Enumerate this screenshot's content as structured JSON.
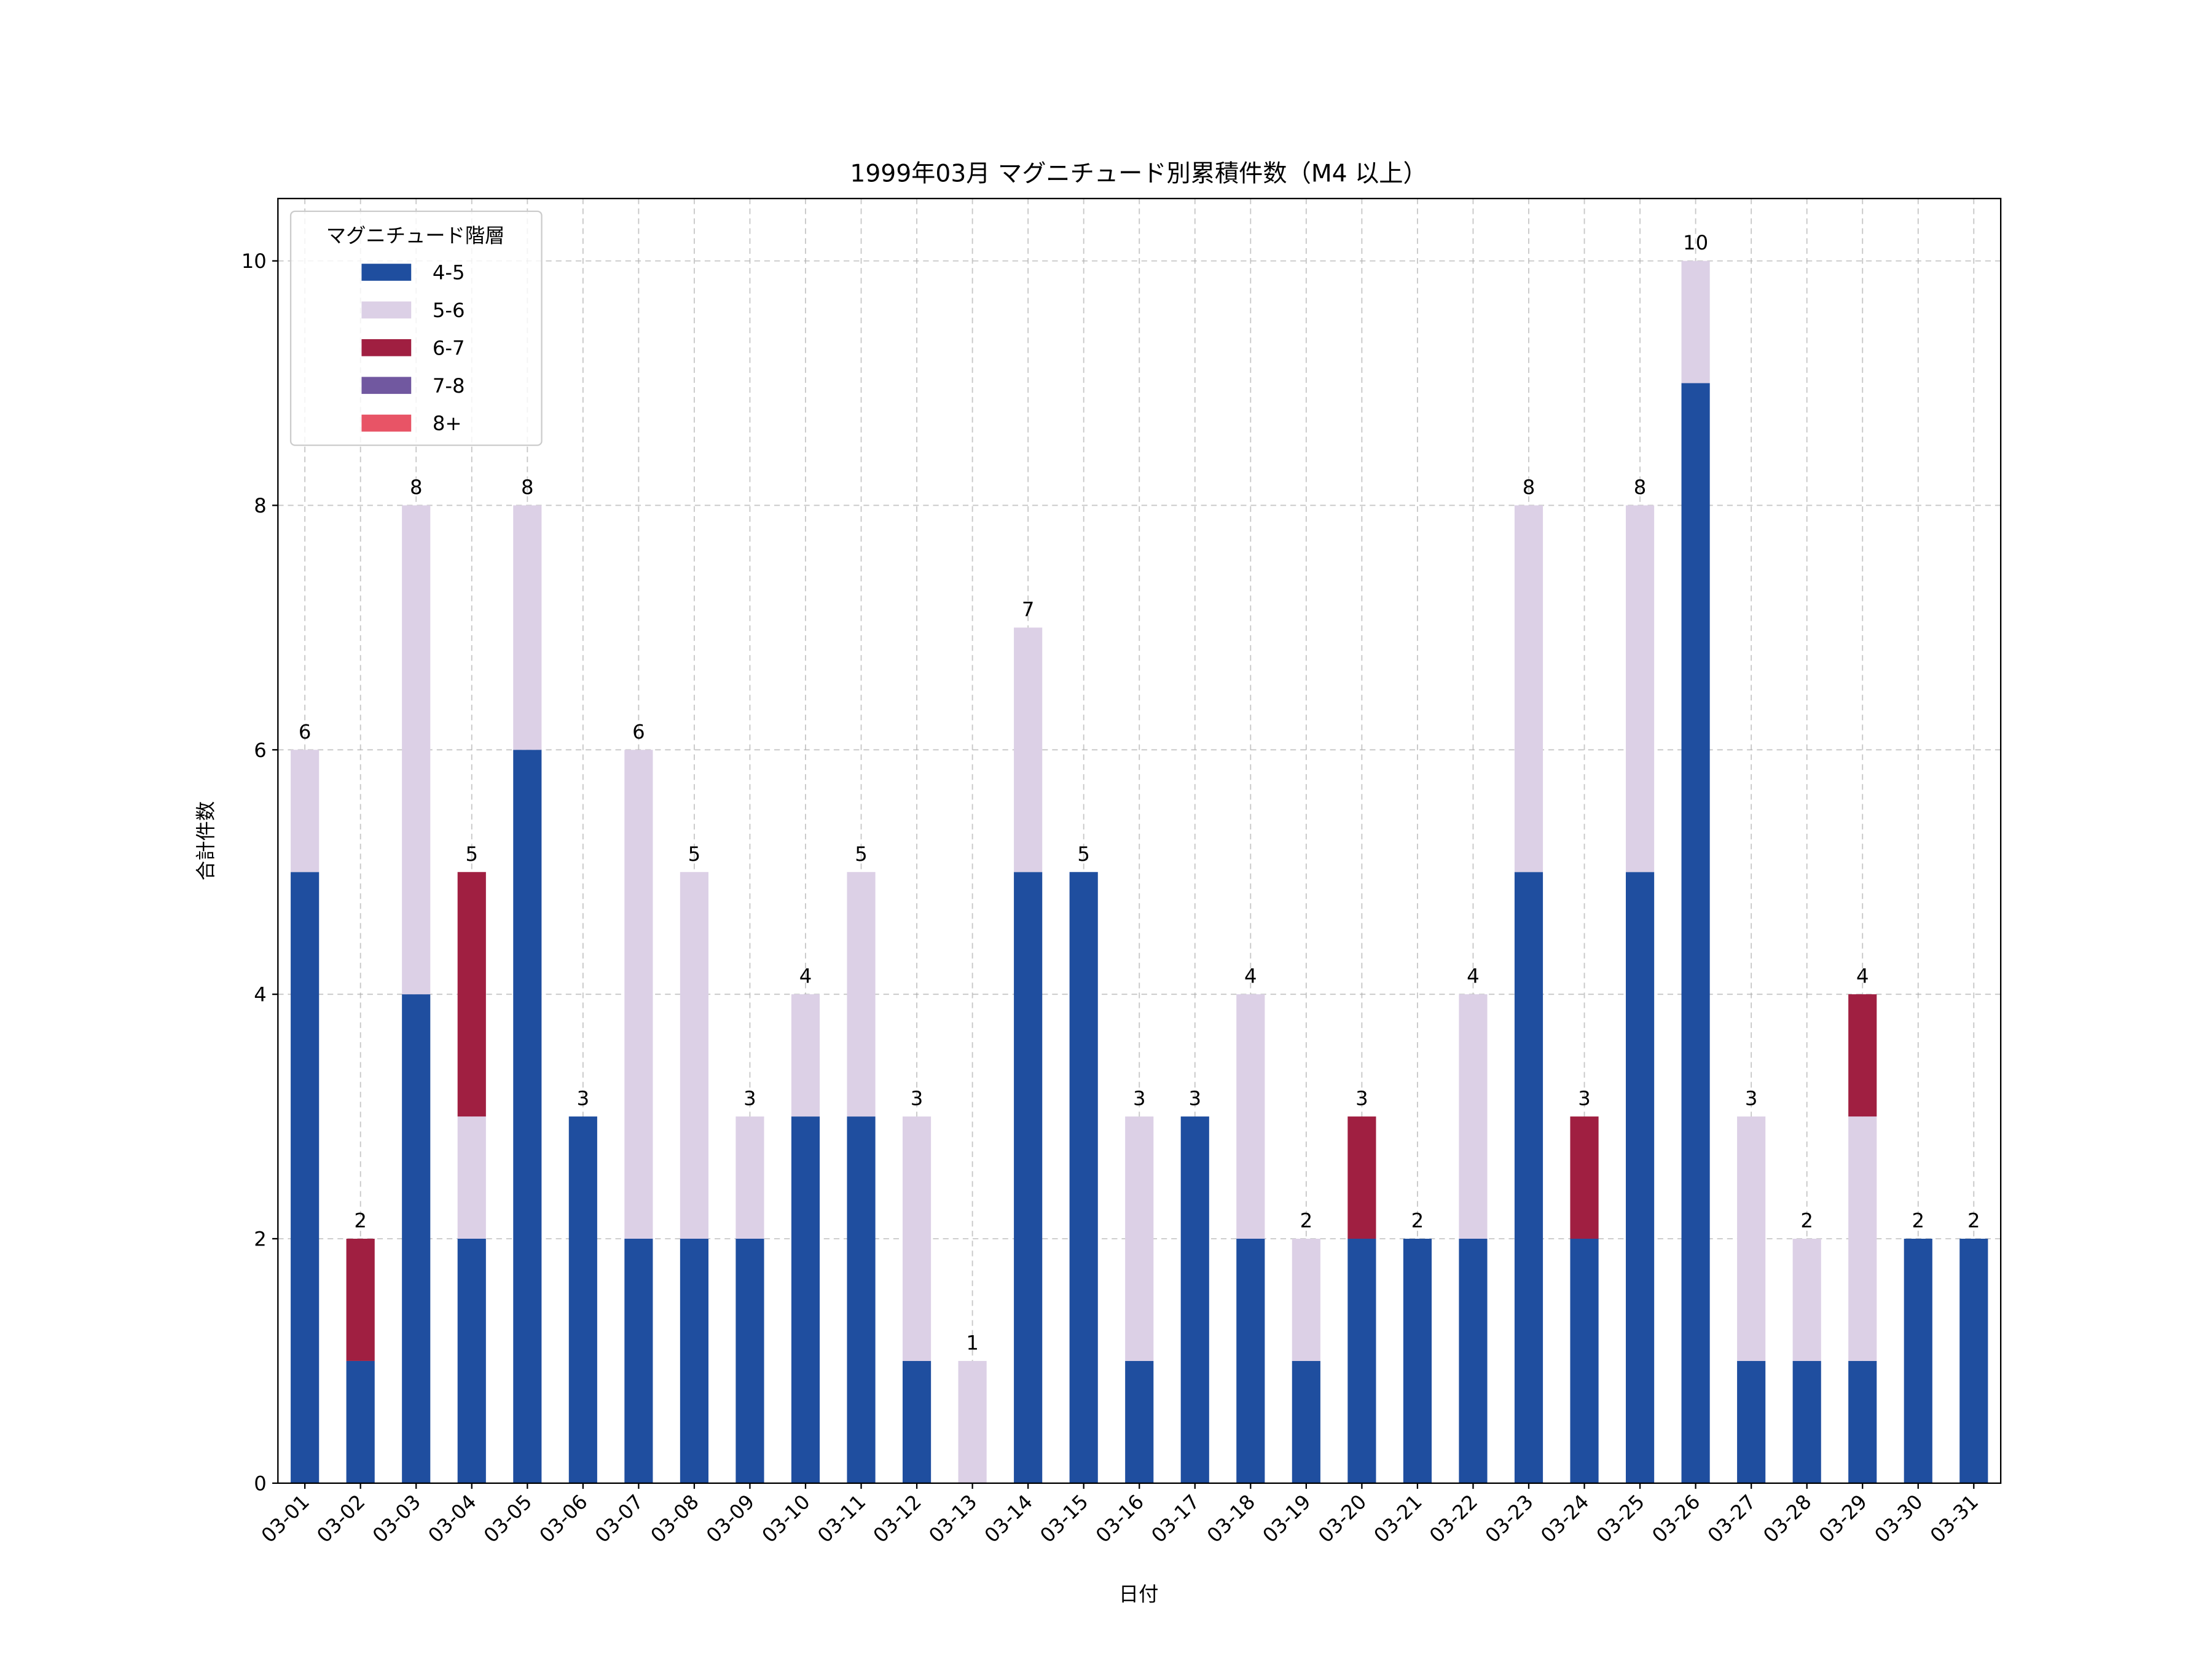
{
  "chart_data": {
    "type": "bar",
    "stacked": true,
    "title": "1999年03月 マグニチュード別累積件数（M4 以上）",
    "xlabel": "日付",
    "ylabel": "合計件数",
    "ylim": [
      0,
      10.5
    ],
    "yticks": [
      0,
      2,
      4,
      6,
      8,
      10
    ],
    "grid": true,
    "legend": {
      "title": "マグニチュード階層",
      "placement": "top-left"
    },
    "categories": [
      "03-01",
      "03-02",
      "03-03",
      "03-04",
      "03-05",
      "03-06",
      "03-07",
      "03-08",
      "03-09",
      "03-10",
      "03-11",
      "03-12",
      "03-13",
      "03-14",
      "03-15",
      "03-16",
      "03-17",
      "03-18",
      "03-19",
      "03-20",
      "03-21",
      "03-22",
      "03-23",
      "03-24",
      "03-25",
      "03-26",
      "03-27",
      "03-28",
      "03-29",
      "03-30",
      "03-31"
    ],
    "series": [
      {
        "name": "4-5",
        "color": "#1f4e9f",
        "values": [
          5,
          1,
          4,
          2,
          6,
          3,
          2,
          2,
          2,
          3,
          3,
          1,
          0,
          5,
          5,
          1,
          3,
          2,
          1,
          2,
          2,
          2,
          5,
          2,
          5,
          9,
          1,
          1,
          1,
          2,
          2
        ]
      },
      {
        "name": "5-6",
        "color": "#dcd0e6",
        "values": [
          1,
          0,
          4,
          1,
          2,
          0,
          4,
          3,
          1,
          1,
          2,
          2,
          1,
          2,
          0,
          2,
          0,
          2,
          1,
          0,
          0,
          2,
          3,
          0,
          3,
          1,
          2,
          1,
          2,
          0,
          0
        ]
      },
      {
        "name": "6-7",
        "color": "#a01f41",
        "values": [
          0,
          1,
          0,
          2,
          0,
          0,
          0,
          0,
          0,
          0,
          0,
          0,
          0,
          0,
          0,
          0,
          0,
          0,
          0,
          1,
          0,
          0,
          0,
          1,
          0,
          0,
          0,
          0,
          1,
          0,
          0
        ]
      },
      {
        "name": "7-8",
        "color": "#7158a0",
        "values": [
          0,
          0,
          0,
          0,
          0,
          0,
          0,
          0,
          0,
          0,
          0,
          0,
          0,
          0,
          0,
          0,
          0,
          0,
          0,
          0,
          0,
          0,
          0,
          0,
          0,
          0,
          0,
          0,
          0,
          0,
          0
        ]
      },
      {
        "name": "8+",
        "color": "#e85466",
        "values": [
          0,
          0,
          0,
          0,
          0,
          0,
          0,
          0,
          0,
          0,
          0,
          0,
          0,
          0,
          0,
          0,
          0,
          0,
          0,
          0,
          0,
          0,
          0,
          0,
          0,
          0,
          0,
          0,
          0,
          0,
          0
        ]
      }
    ],
    "totals": [
      6,
      2,
      8,
      5,
      8,
      3,
      6,
      5,
      3,
      4,
      5,
      3,
      1,
      7,
      5,
      3,
      3,
      4,
      2,
      3,
      2,
      4,
      8,
      3,
      8,
      10,
      3,
      2,
      4,
      2,
      2
    ]
  }
}
